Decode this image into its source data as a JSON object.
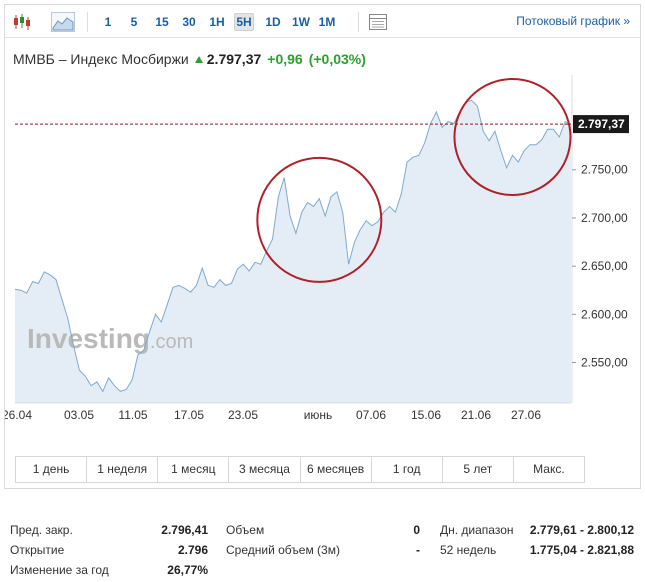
{
  "toolbar": {
    "interval_buttons": [
      "1",
      "5",
      "15",
      "30",
      "1H",
      "5H",
      "1D",
      "1W",
      "1M"
    ],
    "active_interval": "5H",
    "stream_link": "Потоковый график »"
  },
  "instrument": {
    "name": "ММВБ – Индекс Мосбиржи",
    "price": "2.797,37",
    "change": "+0,96",
    "change_pct": "(+0,03%)",
    "change_color": "#2aa12a"
  },
  "chart_data": {
    "type": "area",
    "title": "",
    "xlabel": "",
    "ylabel": "",
    "x_ticks": [
      "26.04",
      "03.05",
      "11.05",
      "17.05",
      "23.05",
      "июнь",
      "07.06",
      "15.06",
      "21.06",
      "27.06"
    ],
    "y_ticks": [
      "2.550,00",
      "2.600,00",
      "2.650,00",
      "2.700,00",
      "2.750,00"
    ],
    "ylim": [
      2508,
      2840
    ],
    "last_price_label": "2.797,37",
    "last_price": 2797.37,
    "grid": false,
    "line_color": "#7fa9cf",
    "fill_color": "#e4edf6",
    "watermark": "Investing.com",
    "values": [
      2626,
      2625,
      2622,
      2634,
      2632,
      2644,
      2641,
      2636,
      2616,
      2596,
      2568,
      2542,
      2536,
      2526,
      2530,
      2520,
      2534,
      2526,
      2520,
      2522,
      2532,
      2558,
      2563,
      2582,
      2600,
      2592,
      2610,
      2628,
      2630,
      2627,
      2623,
      2630,
      2648,
      2630,
      2628,
      2636,
      2630,
      2632,
      2647,
      2652,
      2645,
      2654,
      2652,
      2666,
      2678,
      2722,
      2742,
      2702,
      2684,
      2706,
      2716,
      2712,
      2720,
      2702,
      2722,
      2727,
      2706,
      2652,
      2675,
      2688,
      2697,
      2692,
      2696,
      2706,
      2712,
      2706,
      2725,
      2758,
      2763,
      2765,
      2778,
      2798,
      2810,
      2794,
      2800,
      2798,
      2810,
      2820,
      2822,
      2816,
      2790,
      2780,
      2790,
      2770,
      2752,
      2765,
      2758,
      2770,
      2776,
      2776,
      2781,
      2792,
      2792,
      2784,
      2800,
      2797
    ],
    "circles": [
      {
        "x_index": 52,
        "value": 2698
      },
      {
        "x_index": 85,
        "value": 2784
      }
    ]
  },
  "periods": [
    "1 день",
    "1 неделя",
    "1 месяц",
    "3 месяца",
    "6 месяцев",
    "1 год",
    "5 лет",
    "Макс."
  ],
  "stats": [
    [
      {
        "label": "Пред. закр.",
        "value": "2.796,41"
      },
      {
        "label": "Открытие",
        "value": "2.796"
      },
      {
        "label": "Изменение за год",
        "value": "26,77%"
      }
    ],
    [
      {
        "label": "Объем",
        "value": "0"
      },
      {
        "label": "Средний объем (3м)",
        "value": "-"
      }
    ],
    [
      {
        "label": "Дн. диапазон",
        "value": "2.779,61 - 2.800,12"
      },
      {
        "label": "52 недель",
        "value": "1.775,04 - 2.821,88"
      }
    ]
  ]
}
